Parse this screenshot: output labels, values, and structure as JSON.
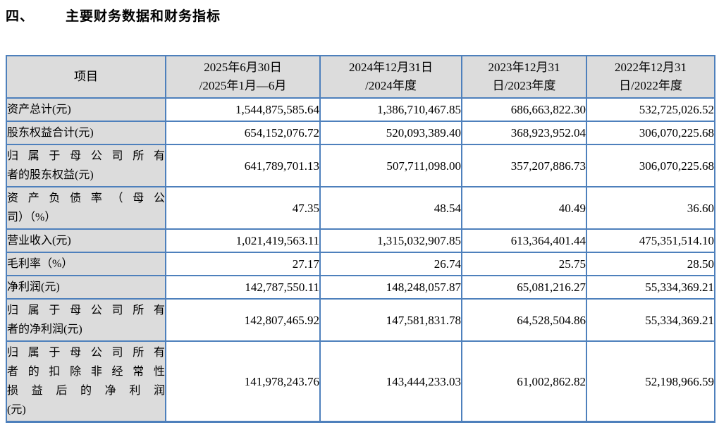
{
  "page": {
    "title_number": "四、",
    "title_text": "主要财务数据和财务指标"
  },
  "table": {
    "item_header": "项目",
    "period_headers": [
      {
        "line1": "2025年6月30日",
        "line2": "/2025年1月—6月"
      },
      {
        "line1": "2024年12月31日",
        "line2": "/2024年度"
      },
      {
        "line1": "2023年12月31",
        "line2": "日/2023年度"
      },
      {
        "line1": "2022年12月31",
        "line2": "日/2022年度"
      }
    ],
    "rows": [
      {
        "label": "资产总计(元)",
        "label_lines": [
          "资产总计(元)"
        ],
        "values": [
          "1,544,875,585.64",
          "1,386,710,467.85",
          "686,663,822.30",
          "532,725,026.52"
        ]
      },
      {
        "label": "股东权益合计(元)",
        "label_lines": [
          "股东权益合计(元)"
        ],
        "values": [
          "654,152,076.72",
          "520,093,389.40",
          "368,923,952.04",
          "306,070,225.68"
        ]
      },
      {
        "label": "归属于母公司所有者的股东权益(元)",
        "label_lines": [
          "归属于母公司所有",
          "者的股东权益(元)"
        ],
        "values": [
          "641,789,701.13",
          "507,711,098.00",
          "357,207,886.73",
          "306,070,225.68"
        ]
      },
      {
        "label": "资产负债率（母公司）（%）",
        "label_lines": [
          "资产负债率（母公",
          "司）（%）"
        ],
        "values": [
          "47.35",
          "48.54",
          "40.49",
          "36.60"
        ]
      },
      {
        "label": "营业收入(元)",
        "label_lines": [
          "营业收入(元)"
        ],
        "values": [
          "1,021,419,563.11",
          "1,315,032,907.85",
          "613,364,401.44",
          "475,351,514.10"
        ]
      },
      {
        "label": "毛利率（%）",
        "label_lines": [
          "毛利率（%）"
        ],
        "values": [
          "27.17",
          "26.74",
          "25.75",
          "28.50"
        ]
      },
      {
        "label": "净利润(元)",
        "label_lines": [
          "净利润(元)"
        ],
        "values": [
          "142,787,550.11",
          "148,248,057.87",
          "65,081,216.27",
          "55,334,369.21"
        ]
      },
      {
        "label": "归属于母公司所有者的净利润(元)",
        "label_lines": [
          "归属于母公司所有",
          "者的净利润(元)"
        ],
        "values": [
          "142,807,465.92",
          "147,581,831.78",
          "64,528,504.86",
          "55,334,369.21"
        ]
      },
      {
        "label": "归属于母公司所有者的扣除非经常性损益后的净利润(元)",
        "label_lines": [
          "归属于母公司所有",
          "者的扣除非经常性",
          "损益后的净利润",
          "(元)"
        ],
        "values": [
          "141,978,243.76",
          "143,444,233.03",
          "61,002,862.82",
          "52,198,966.59"
        ]
      }
    ]
  },
  "colors": {
    "table_border": "#4E80BC",
    "shaded_cell_bg": "#DCDCDC"
  }
}
